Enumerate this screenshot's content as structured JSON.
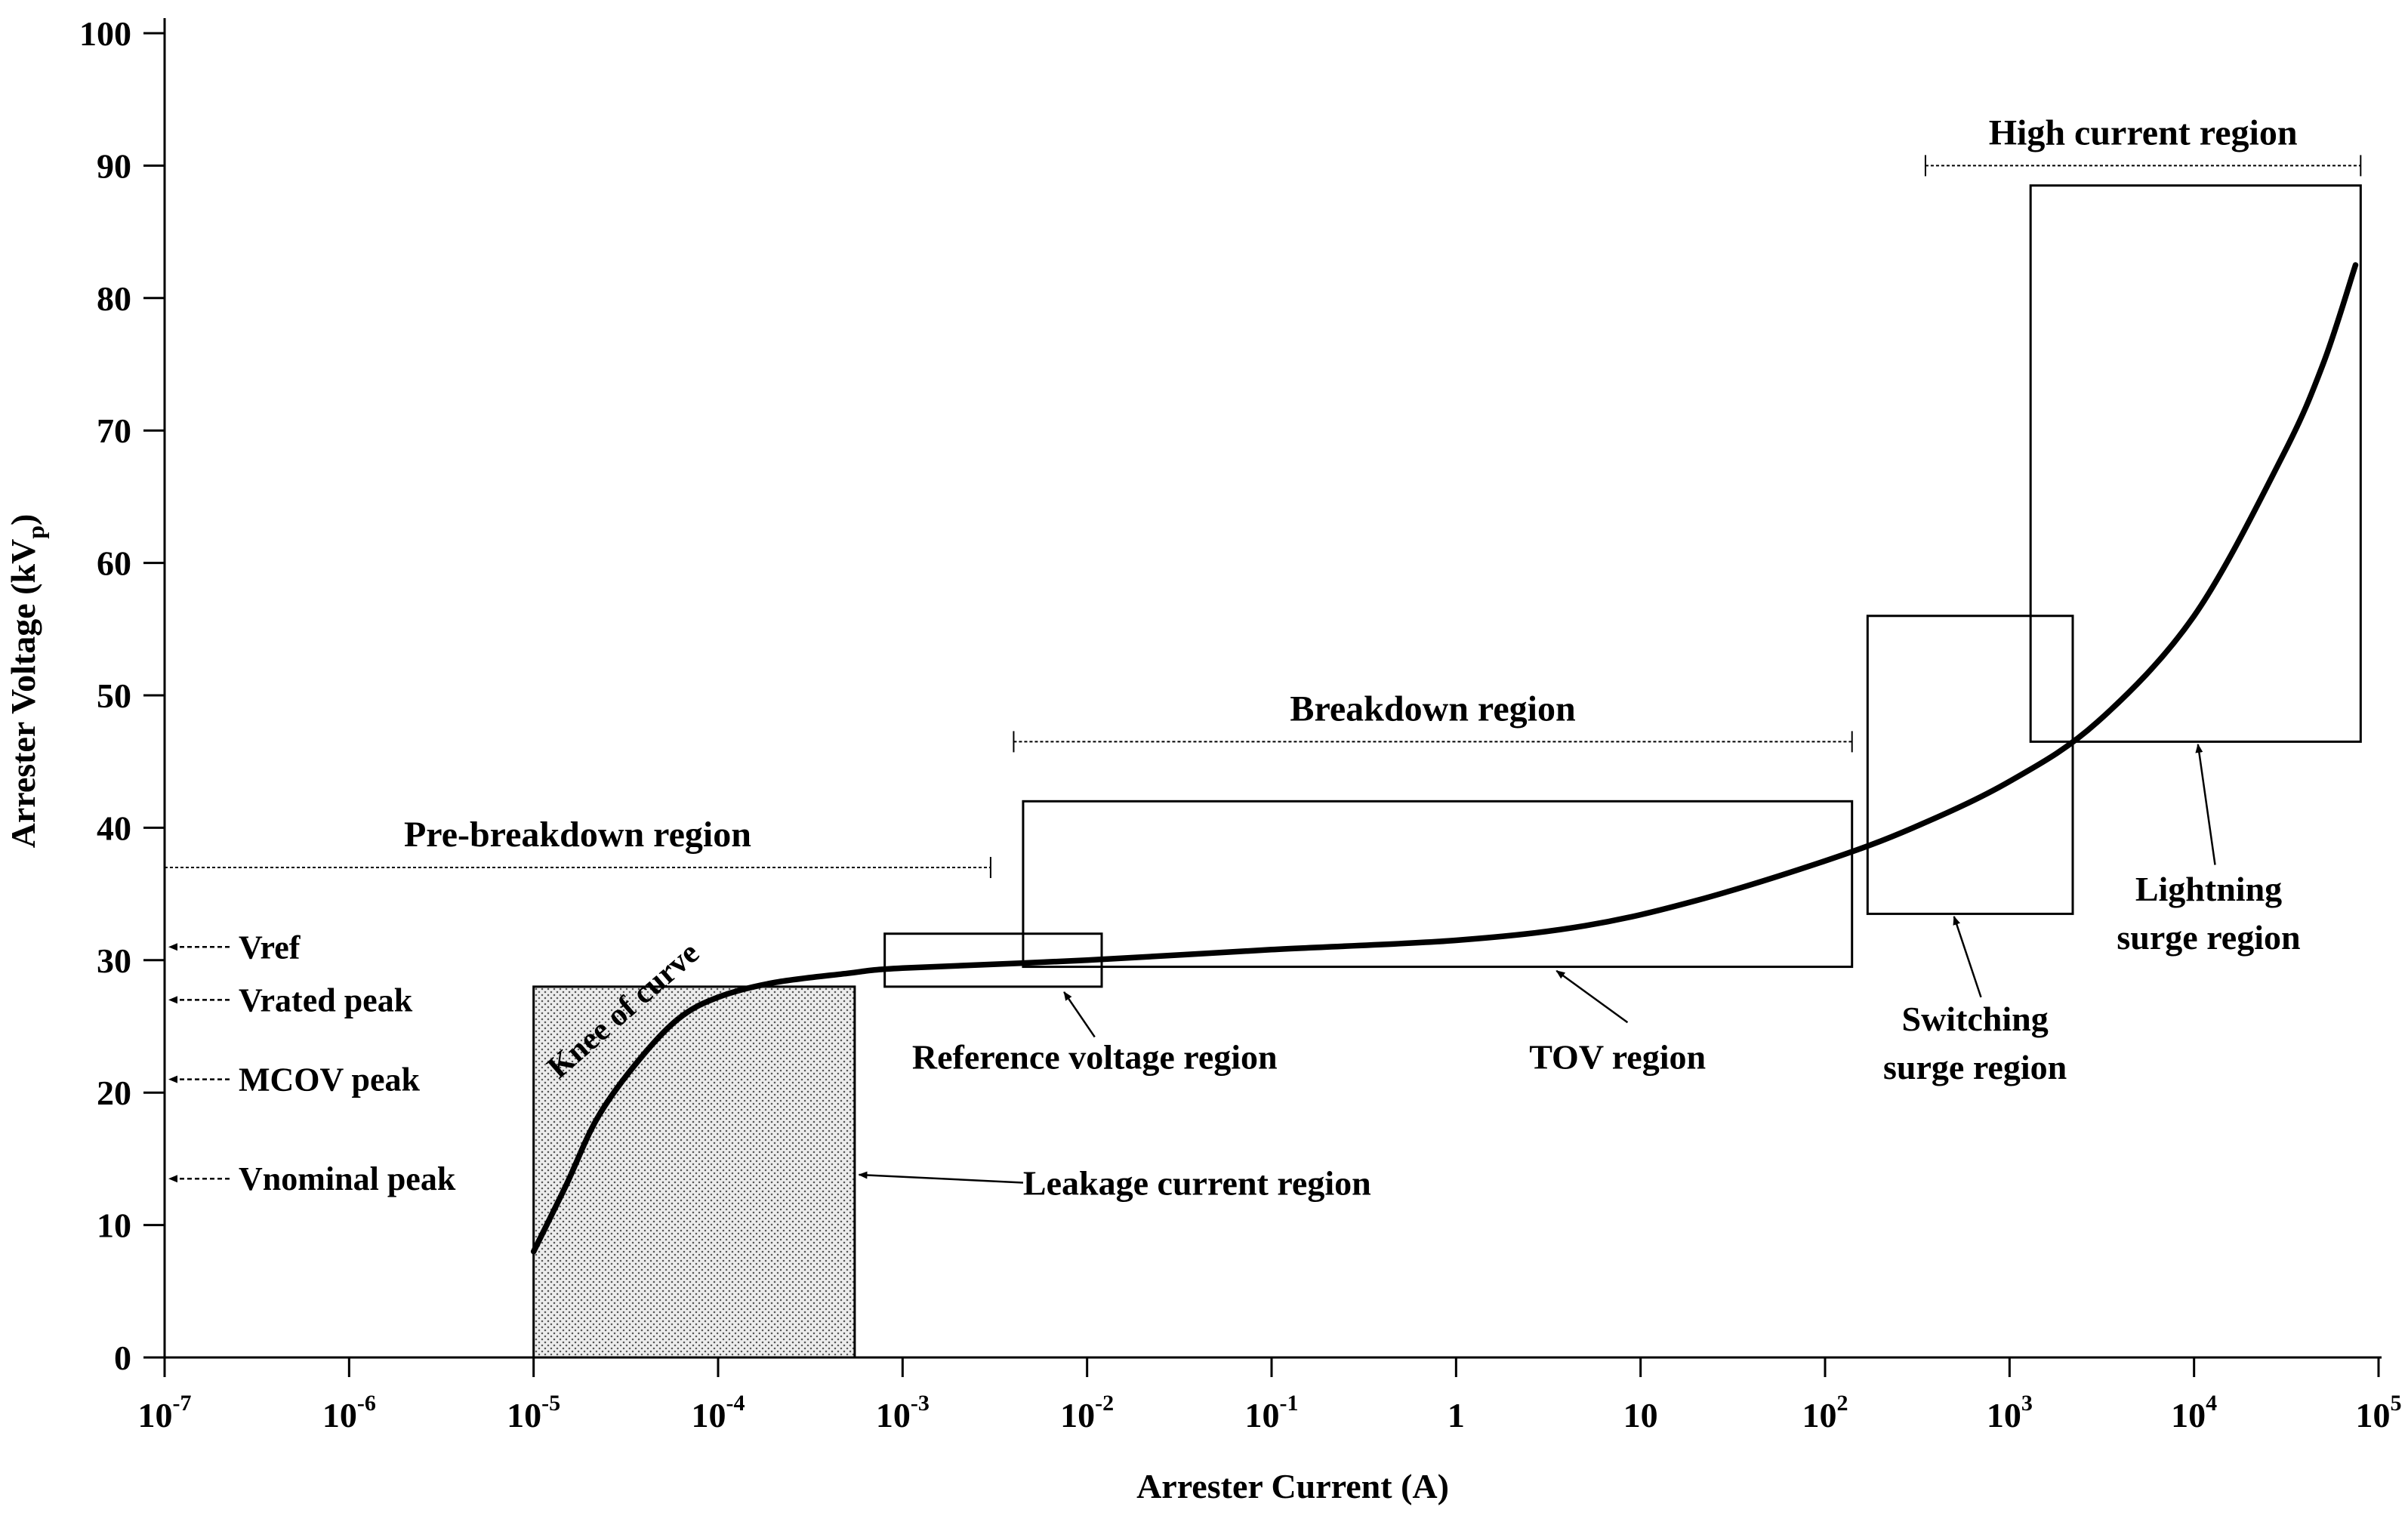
{
  "chart_data": {
    "type": "line",
    "xscale": "log",
    "xlabel": "Arrester Current (A)",
    "ylabel_main": "Arrester Voltage  (kV",
    "ylabel_sub": "p",
    "ylabel_close": ")",
    "ylim": [
      0,
      100
    ],
    "xlim": [
      1e-07,
      100000.0
    ],
    "y_ticks": [
      0,
      10,
      20,
      30,
      40,
      50,
      60,
      70,
      80,
      90,
      100
    ],
    "x_ticks": [
      {
        "value": 1e-07,
        "base": "10",
        "exp": "-7"
      },
      {
        "value": 1e-06,
        "base": "10",
        "exp": "-6"
      },
      {
        "value": 1e-05,
        "base": "10",
        "exp": "-5"
      },
      {
        "value": 0.0001,
        "base": "10",
        "exp": "-4"
      },
      {
        "value": 0.001,
        "base": "10",
        "exp": "-3"
      },
      {
        "value": 0.01,
        "base": "10",
        "exp": "-2"
      },
      {
        "value": 0.1,
        "base": "10",
        "exp": "-1"
      },
      {
        "value": 1,
        "base": "1",
        "exp": ""
      },
      {
        "value": 10,
        "base": "10",
        "exp": ""
      },
      {
        "value": 100,
        "base": "10",
        "exp": "2"
      },
      {
        "value": 1000,
        "base": "10",
        "exp": "3"
      },
      {
        "value": 10000,
        "base": "10",
        "exp": "4"
      },
      {
        "value": 100000,
        "base": "10",
        "exp": "5"
      }
    ],
    "curve": [
      {
        "x": 1e-05,
        "y": 8
      },
      {
        "x": 1.5e-05,
        "y": 13
      },
      {
        "x": 2.2e-05,
        "y": 18
      },
      {
        "x": 3.5e-05,
        "y": 22
      },
      {
        "x": 6e-05,
        "y": 25.5
      },
      {
        "x": 0.0001,
        "y": 27.2
      },
      {
        "x": 0.0002,
        "y": 28.3
      },
      {
        "x": 0.0005,
        "y": 29
      },
      {
        "x": 0.001,
        "y": 29.4
      },
      {
        "x": 0.01,
        "y": 30
      },
      {
        "x": 0.1,
        "y": 30.8
      },
      {
        "x": 1,
        "y": 31.5
      },
      {
        "x": 5,
        "y": 32.6
      },
      {
        "x": 20,
        "y": 34.5
      },
      {
        "x": 100,
        "y": 37.5
      },
      {
        "x": 300,
        "y": 40
      },
      {
        "x": 1000,
        "y": 43.5
      },
      {
        "x": 3000,
        "y": 48
      },
      {
        "x": 10000,
        "y": 56
      },
      {
        "x": 30000,
        "y": 68
      },
      {
        "x": 50000,
        "y": 75
      },
      {
        "x": 75000,
        "y": 82.5
      }
    ],
    "regions": [
      {
        "id": "leakage",
        "x1": 1e-05,
        "x2": 0.00055,
        "y1": 0,
        "y2": 28,
        "shaded": true
      },
      {
        "id": "reference",
        "x1": 0.0008,
        "x2": 0.012,
        "y1": 28,
        "y2": 32,
        "shaded": false
      },
      {
        "id": "tov",
        "x1": 0.0045,
        "x2": 140,
        "y1": 29.5,
        "y2": 42,
        "shaded": false
      },
      {
        "id": "switching",
        "x1": 170,
        "x2": 2200,
        "y1": 33.5,
        "y2": 56,
        "shaded": false
      },
      {
        "id": "lightning",
        "x1": 1300,
        "x2": 80000,
        "y1": 46.5,
        "y2": 88.5,
        "shaded": false
      }
    ],
    "spans": [
      {
        "id": "pre-breakdown",
        "label": "Pre-breakdown region",
        "x1": 1e-07,
        "x2": 0.003,
        "y": 37,
        "label_y": 38.6
      },
      {
        "id": "breakdown",
        "label": "Breakdown region",
        "x1": 0.004,
        "x2": 140,
        "y": 46.5,
        "label_y": 48.1
      },
      {
        "id": "high-current",
        "label": "High current region",
        "x1": 350,
        "x2": 80000,
        "y": 90,
        "label_y": 91.6
      }
    ],
    "voltage_markers": [
      {
        "label": "Vref",
        "y": 31
      },
      {
        "label": "Vrated peak",
        "y": 27
      },
      {
        "label": "MCOV peak",
        "y": 21
      },
      {
        "label": "Vnominal peak",
        "y": 13.5
      }
    ],
    "annotations": [
      {
        "id": "leakage",
        "lines": [
          "Leakage current region"
        ],
        "text_x": 0.0045,
        "text_y": 12.3,
        "anchor": "start",
        "arrow_from": {
          "x": 0.0045,
          "y": 13.2
        },
        "arrow_to": {
          "x": 0.00058,
          "y": 13.8
        }
      },
      {
        "id": "reference",
        "lines": [
          "Reference voltage region"
        ],
        "text_x": 0.011,
        "text_y": 21.8,
        "anchor": "middle",
        "arrow_from": {
          "x": 0.011,
          "y": 24.2
        },
        "arrow_to": {
          "x": 0.0075,
          "y": 27.6
        }
      },
      {
        "id": "tov",
        "lines": [
          "TOV region"
        ],
        "text_x": 7.5,
        "text_y": 21.8,
        "anchor": "middle",
        "arrow_from": {
          "x": 8.5,
          "y": 25.3
        },
        "arrow_to": {
          "x": 3.5,
          "y": 29.2
        }
      },
      {
        "id": "switching",
        "lines": [
          "Switching",
          "surge region"
        ],
        "text_x": 650,
        "text_y": 24.7,
        "anchor": "middle",
        "arrow_from": {
          "x": 700,
          "y": 27.2
        },
        "arrow_to": {
          "x": 500,
          "y": 33.3
        }
      },
      {
        "id": "lightning",
        "lines": [
          "Lightning",
          "surge region"
        ],
        "text_x": 12000,
        "text_y": 34.5,
        "anchor": "middle",
        "arrow_from": {
          "x": 13000,
          "y": 37.2
        },
        "arrow_to": {
          "x": 10500,
          "y": 46.3
        }
      }
    ],
    "knee_label": "Knee of curve"
  }
}
